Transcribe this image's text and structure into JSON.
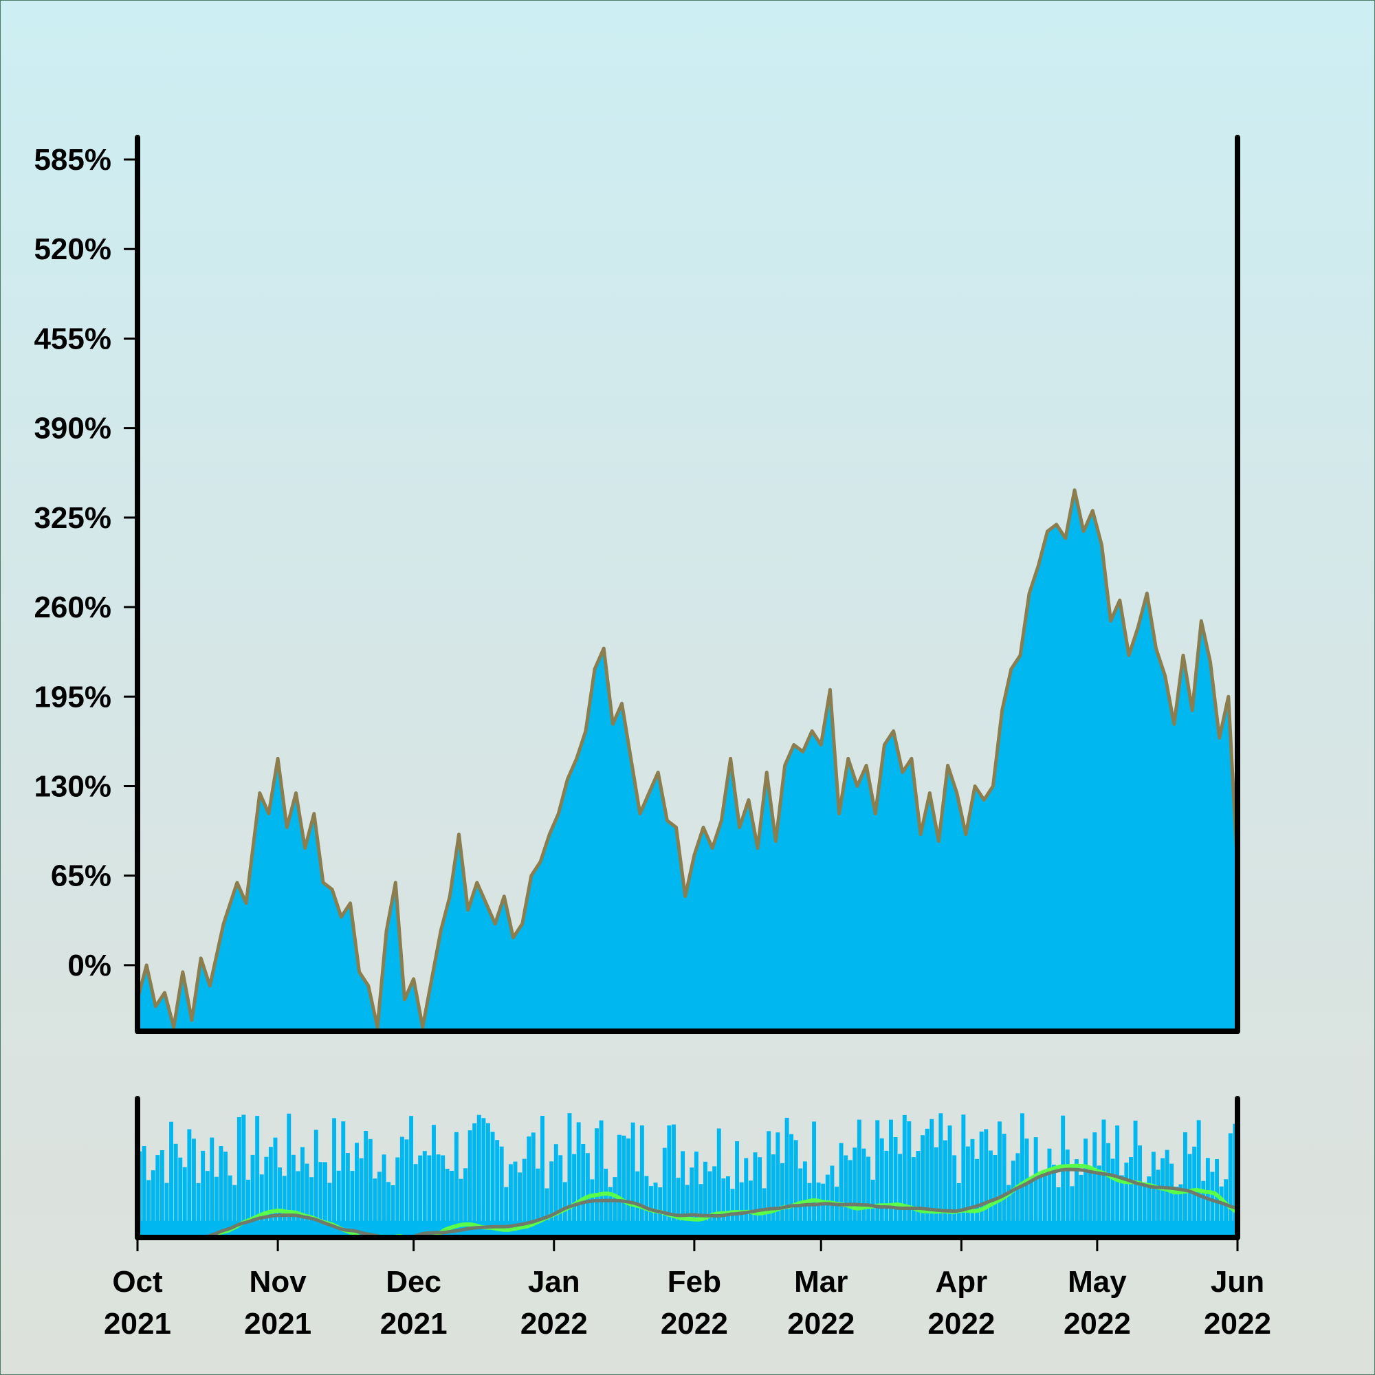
{
  "chart_data": [
    {
      "type": "area",
      "title": "",
      "xlabel": "",
      "ylabel": "",
      "y_tick_labels": [
        "585%",
        "520%",
        "455%",
        "390%",
        "325%",
        "260%",
        "195%",
        "130%",
        "65%",
        "0%"
      ],
      "y_ticks": [
        585,
        520,
        455,
        390,
        325,
        260,
        195,
        130,
        65,
        0
      ],
      "ylim": [
        -48,
        601
      ],
      "xlim": [
        "2021-10-01",
        "2022-06-01"
      ],
      "grid": false,
      "colors": {
        "fill": "#00b7ef",
        "line": "#8b7d4d"
      },
      "series": [
        {
          "values_by_date": [
            [
              "2021-10-01",
              -25
            ],
            [
              "2021-10-03",
              0
            ],
            [
              "2021-10-05",
              -30
            ],
            [
              "2021-10-07",
              -20
            ],
            [
              "2021-10-09",
              -45
            ],
            [
              "2021-10-11",
              -5
            ],
            [
              "2021-10-13",
              -40
            ],
            [
              "2021-10-15",
              5
            ],
            [
              "2021-10-17",
              -15
            ],
            [
              "2021-10-20",
              30
            ],
            [
              "2021-10-23",
              60
            ],
            [
              "2021-10-25",
              45
            ],
            [
              "2021-10-28",
              125
            ],
            [
              "2021-10-30",
              110
            ],
            [
              "2021-11-01",
              150
            ],
            [
              "2021-11-03",
              100
            ],
            [
              "2021-11-05",
              125
            ],
            [
              "2021-11-07",
              85
            ],
            [
              "2021-11-09",
              110
            ],
            [
              "2021-11-11",
              60
            ],
            [
              "2021-11-13",
              55
            ],
            [
              "2021-11-15",
              35
            ],
            [
              "2021-11-17",
              45
            ],
            [
              "2021-11-19",
              -5
            ],
            [
              "2021-11-21",
              -15
            ],
            [
              "2021-11-23",
              -45
            ],
            [
              "2021-11-25",
              25
            ],
            [
              "2021-11-27",
              60
            ],
            [
              "2021-11-29",
              -25
            ],
            [
              "2021-12-01",
              -10
            ],
            [
              "2021-12-03",
              -45
            ],
            [
              "2021-12-05",
              -10
            ],
            [
              "2021-12-07",
              25
            ],
            [
              "2021-12-09",
              50
            ],
            [
              "2021-12-11",
              95
            ],
            [
              "2021-12-13",
              40
            ],
            [
              "2021-12-15",
              60
            ],
            [
              "2021-12-17",
              45
            ],
            [
              "2021-12-19",
              30
            ],
            [
              "2021-12-21",
              50
            ],
            [
              "2021-12-23",
              20
            ],
            [
              "2021-12-25",
              30
            ],
            [
              "2021-12-27",
              65
            ],
            [
              "2021-12-29",
              75
            ],
            [
              "2021-12-31",
              95
            ],
            [
              "2022-01-02",
              110
            ],
            [
              "2022-01-04",
              135
            ],
            [
              "2022-01-06",
              150
            ],
            [
              "2022-01-08",
              170
            ],
            [
              "2022-01-10",
              215
            ],
            [
              "2022-01-12",
              230
            ],
            [
              "2022-01-14",
              175
            ],
            [
              "2022-01-16",
              190
            ],
            [
              "2022-01-18",
              150
            ],
            [
              "2022-01-20",
              110
            ],
            [
              "2022-01-22",
              125
            ],
            [
              "2022-01-24",
              140
            ],
            [
              "2022-01-26",
              105
            ],
            [
              "2022-01-28",
              100
            ],
            [
              "2022-01-30",
              50
            ],
            [
              "2022-02-01",
              80
            ],
            [
              "2022-02-03",
              100
            ],
            [
              "2022-02-05",
              85
            ],
            [
              "2022-02-07",
              105
            ],
            [
              "2022-02-09",
              150
            ],
            [
              "2022-02-11",
              100
            ],
            [
              "2022-02-13",
              120
            ],
            [
              "2022-02-15",
              85
            ],
            [
              "2022-02-17",
              140
            ],
            [
              "2022-02-19",
              90
            ],
            [
              "2022-02-21",
              145
            ],
            [
              "2022-02-23",
              160
            ],
            [
              "2022-02-25",
              155
            ],
            [
              "2022-02-27",
              170
            ],
            [
              "2022-03-01",
              160
            ],
            [
              "2022-03-03",
              200
            ],
            [
              "2022-03-05",
              110
            ],
            [
              "2022-03-07",
              150
            ],
            [
              "2022-03-09",
              130
            ],
            [
              "2022-03-11",
              145
            ],
            [
              "2022-03-13",
              110
            ],
            [
              "2022-03-15",
              160
            ],
            [
              "2022-03-17",
              170
            ],
            [
              "2022-03-19",
              140
            ],
            [
              "2022-03-21",
              150
            ],
            [
              "2022-03-23",
              95
            ],
            [
              "2022-03-25",
              125
            ],
            [
              "2022-03-27",
              90
            ],
            [
              "2022-03-29",
              145
            ],
            [
              "2022-03-31",
              125
            ],
            [
              "2022-04-02",
              95
            ],
            [
              "2022-04-04",
              130
            ],
            [
              "2022-04-06",
              120
            ],
            [
              "2022-04-08",
              130
            ],
            [
              "2022-04-10",
              185
            ],
            [
              "2022-04-12",
              215
            ],
            [
              "2022-04-14",
              225
            ],
            [
              "2022-04-16",
              270
            ],
            [
              "2022-04-18",
              290
            ],
            [
              "2022-04-20",
              315
            ],
            [
              "2022-04-22",
              320
            ],
            [
              "2022-04-24",
              310
            ],
            [
              "2022-04-26",
              345
            ],
            [
              "2022-04-28",
              315
            ],
            [
              "2022-04-30",
              330
            ],
            [
              "2022-05-02",
              305
            ],
            [
              "2022-05-04",
              250
            ],
            [
              "2022-05-06",
              265
            ],
            [
              "2022-05-08",
              225
            ],
            [
              "2022-05-10",
              245
            ],
            [
              "2022-05-12",
              270
            ],
            [
              "2022-05-14",
              230
            ],
            [
              "2022-05-16",
              210
            ],
            [
              "2022-05-18",
              175
            ],
            [
              "2022-05-20",
              225
            ],
            [
              "2022-05-22",
              185
            ],
            [
              "2022-05-24",
              250
            ],
            [
              "2022-05-26",
              220
            ],
            [
              "2022-05-28",
              165
            ],
            [
              "2022-05-30",
              195
            ],
            [
              "2022-06-01",
              70
            ]
          ]
        }
      ]
    },
    {
      "type": "bar",
      "title": "",
      "note": "navigator panel: daily bars with two smoothed lines",
      "colors": {
        "bars": "#00b7ef",
        "line1": "#5aff4a",
        "line2": "#6f7a6a"
      },
      "x_tick_labels": [
        [
          "Oct",
          "2021"
        ],
        [
          "Nov",
          "2021"
        ],
        [
          "Dec",
          "2021"
        ],
        [
          "Jan",
          "2022"
        ],
        [
          "Feb",
          "2022"
        ],
        [
          "Mar",
          "2022"
        ],
        [
          "Apr",
          "2022"
        ],
        [
          "May",
          "2022"
        ],
        [
          "Jun",
          "2022"
        ]
      ],
      "x_ticks": [
        "2021-10-01",
        "2021-11-01",
        "2021-12-01",
        "2022-01-01",
        "2022-02-01",
        "2022-03-01",
        "2022-04-01",
        "2022-05-01",
        "2022-06-01"
      ],
      "grid": false
    }
  ]
}
